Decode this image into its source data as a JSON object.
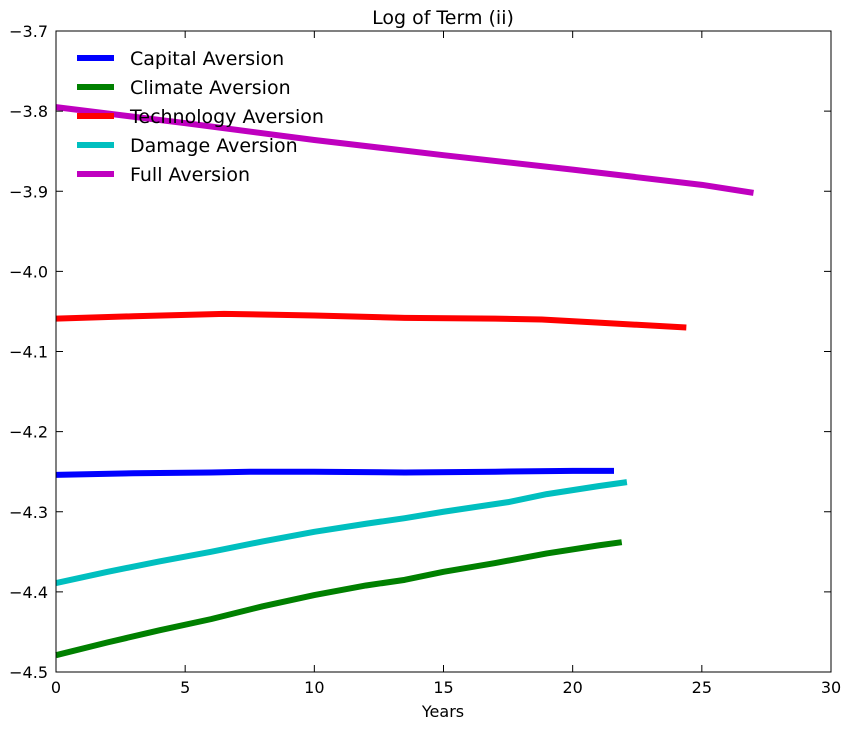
{
  "chart_data": {
    "type": "line",
    "title": "Log of Term (ii)",
    "xlabel": "Years",
    "ylabel": "",
    "xlim": [
      0,
      30
    ],
    "ylim": [
      -4.5,
      -3.7
    ],
    "xticks": [
      "0",
      "5",
      "10",
      "15",
      "20",
      "25",
      "30"
    ],
    "yticks": [
      "−3.7",
      "−3.8",
      "−3.9",
      "−4.0",
      "−4.1",
      "−4.2",
      "−4.3",
      "−4.4",
      "−4.5"
    ],
    "grid": false,
    "legend_position": "top-left",
    "series": [
      {
        "name": "Capital Aversion",
        "color": "#0000ff",
        "x": [
          0,
          3,
          6,
          7.5,
          10,
          13.5,
          17,
          20,
          21.6
        ],
        "y": [
          -4.254,
          -4.252,
          -4.251,
          -4.25,
          -4.25,
          -4.251,
          -4.25,
          -4.249,
          -4.249
        ]
      },
      {
        "name": "Climate Aversion",
        "color": "#008000",
        "x": [
          0,
          2,
          4,
          6,
          8,
          10,
          12,
          13.5,
          15,
          17,
          19,
          21,
          21.9
        ],
        "y": [
          -4.479,
          -4.463,
          -4.448,
          -4.434,
          -4.418,
          -4.404,
          -4.392,
          -4.385,
          -4.375,
          -4.364,
          -4.352,
          -4.342,
          -4.338
        ]
      },
      {
        "name": "Technology Aversion",
        "color": "#ff0000",
        "x": [
          0,
          3,
          6.5,
          10,
          13.5,
          17,
          18.8,
          21,
          24.4
        ],
        "y": [
          -4.059,
          -4.056,
          -4.053,
          -4.055,
          -4.058,
          -4.059,
          -4.06,
          -4.064,
          -4.07
        ]
      },
      {
        "name": "Damage Aversion",
        "color": "#00bfbf",
        "x": [
          0,
          2,
          4,
          6,
          8,
          10,
          12,
          13.5,
          15,
          17.5,
          19,
          21,
          22.1
        ],
        "y": [
          -4.389,
          -4.375,
          -4.362,
          -4.35,
          -4.337,
          -4.325,
          -4.315,
          -4.308,
          -4.3,
          -4.288,
          -4.278,
          -4.268,
          -4.263
        ]
      },
      {
        "name": "Full Aversion",
        "color": "#bf00bf",
        "x": [
          0,
          5,
          10,
          15,
          20,
          25,
          27
        ],
        "y": [
          -3.795,
          -3.815,
          -3.836,
          -3.855,
          -3.873,
          -3.892,
          -3.902
        ]
      }
    ]
  }
}
